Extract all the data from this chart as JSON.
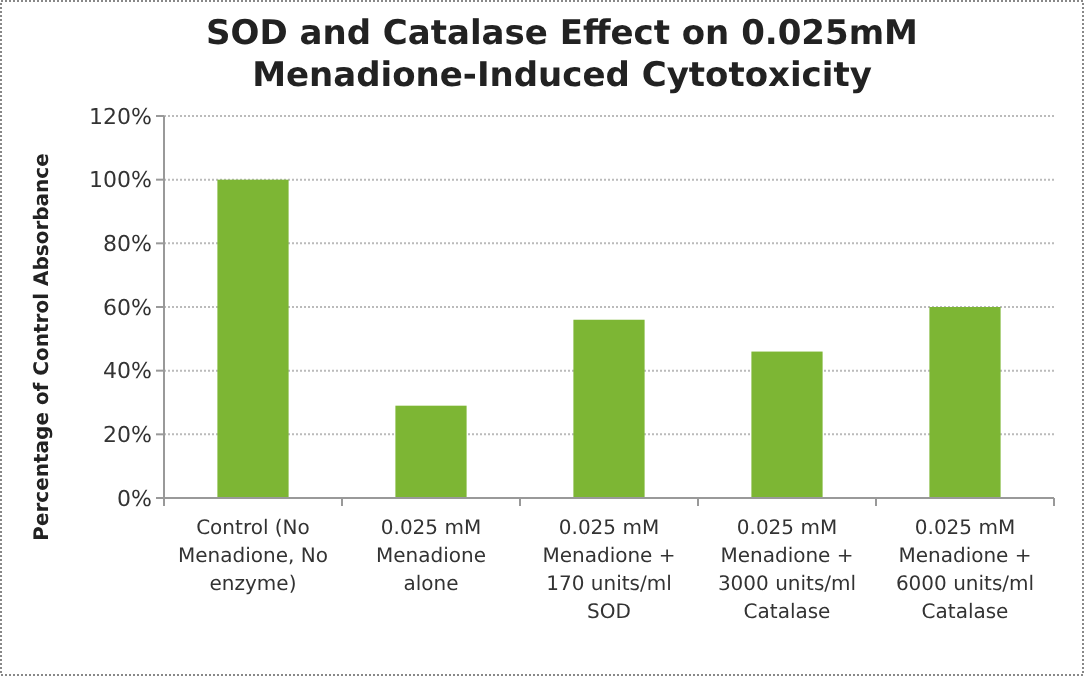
{
  "chart_data": {
    "type": "bar",
    "title": "SOD and Catalase Effect on 0.025mM Menadione-Induced Cytotoxicity",
    "ylabel": "Percentage of Control Absorbance",
    "categories": [
      "Control (No Menadione, No enzyme)",
      "0.025 mM Menadione alone",
      "0.025 mM Menadione + 170 units/ml SOD",
      "0.025 mM Menadione + 3000 units/ml Catalase",
      "0.025 mM Menadione + 6000 units/ml Catalase"
    ],
    "values": [
      100,
      29,
      56,
      46,
      60
    ],
    "color": "#7db634",
    "ylim": [
      0,
      120
    ],
    "yticks": [
      {
        "value": 0,
        "label": "0%"
      },
      {
        "value": 20,
        "label": "20%"
      },
      {
        "value": 40,
        "label": "40%"
      },
      {
        "value": 60,
        "label": "60%"
      },
      {
        "value": 80,
        "label": "80%"
      },
      {
        "value": 100,
        "label": "100%"
      },
      {
        "value": 120,
        "label": "120%"
      }
    ],
    "grid": "y"
  }
}
